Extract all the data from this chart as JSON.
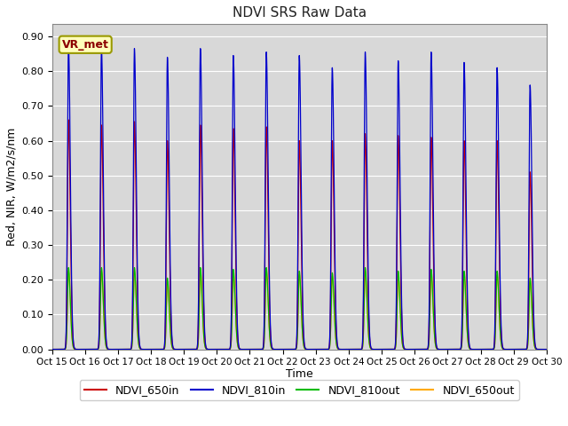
{
  "title": "NDVI SRS Raw Data",
  "xlabel": "Time",
  "ylabel": "Red, NIR, W/m2/s/nm",
  "ylim": [
    0.0,
    0.935
  ],
  "yticks": [
    0.0,
    0.1,
    0.2,
    0.3,
    0.4,
    0.5,
    0.6,
    0.7,
    0.8,
    0.9
  ],
  "x_labels": [
    "Oct 15",
    "Oct 16",
    "Oct 17",
    "Oct 18",
    "Oct 19",
    "Oct 20",
    "Oct 21",
    "Oct 22",
    "Oct 23",
    "Oct 24",
    "Oct 25",
    "Oct 26",
    "Oct 27",
    "Oct 28",
    "Oct 29",
    "Oct 30"
  ],
  "series_colors": {
    "NDVI_650in": "#cc0000",
    "NDVI_810in": "#0000cc",
    "NDVI_810out": "#00bb00",
    "NDVI_650out": "#ffaa00"
  },
  "annotation_text": "VR_met",
  "background_color": "#d8d8d8",
  "peaks_810in": [
    0.875,
    0.865,
    0.865,
    0.84,
    0.865,
    0.845,
    0.855,
    0.845,
    0.81,
    0.855,
    0.83,
    0.855,
    0.825,
    0.81,
    0.76
  ],
  "peaks_650in": [
    0.66,
    0.645,
    0.655,
    0.6,
    0.645,
    0.635,
    0.64,
    0.6,
    0.6,
    0.62,
    0.615,
    0.61,
    0.6,
    0.6,
    0.51
  ],
  "peaks_810out": [
    0.235,
    0.235,
    0.235,
    0.205,
    0.235,
    0.23,
    0.235,
    0.225,
    0.22,
    0.235,
    0.225,
    0.23,
    0.225,
    0.225,
    0.205
  ],
  "peaks_650out": [
    0.225,
    0.225,
    0.225,
    0.195,
    0.225,
    0.218,
    0.225,
    0.215,
    0.21,
    0.225,
    0.215,
    0.22,
    0.215,
    0.213,
    0.195
  ]
}
